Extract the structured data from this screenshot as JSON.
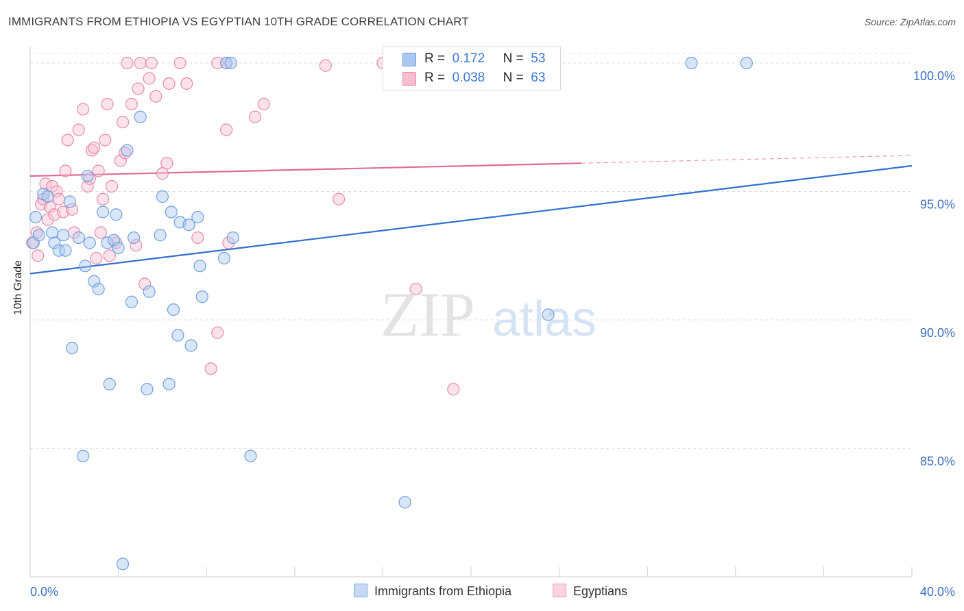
{
  "header": {
    "title": "IMMIGRANTS FROM ETHIOPIA VS EGYPTIAN 10TH GRADE CORRELATION CHART",
    "source": "Source: ZipAtlas.com"
  },
  "watermark": {
    "zip": "ZIP",
    "atlas": "atlas"
  },
  "legend_top": [
    {
      "r_label": "R =",
      "r_value": "0.172",
      "n_label": "N =",
      "n_value": "53",
      "color": "#a9c7f0",
      "border": "#6d9ee0"
    },
    {
      "r_label": "R =",
      "r_value": "0.038",
      "n_label": "N =",
      "n_value": "63",
      "color": "#f8bdd0",
      "border": "#e88aa8"
    }
  ],
  "legend_bottom": [
    {
      "label": "Immigrants from Ethiopia",
      "color": "#c4d9f5",
      "border": "#7aa6e0"
    },
    {
      "label": "Egyptians",
      "color": "#fbd3e0",
      "border": "#ea9ab5"
    }
  ],
  "colors": {
    "blue_fill": "rgba(170,200,240,0.45)",
    "blue_stroke": "#6d9ee0",
    "blue_line": "#2f6fcf",
    "pink_fill": "rgba(248,190,210,0.45)",
    "pink_stroke": "#e58aa8",
    "pink_line": "#e06b93",
    "tick_label": "#3b6fc4",
    "grid": "#dddddd"
  },
  "chart_data": {
    "type": "scatter",
    "title": "IMMIGRANTS FROM ETHIOPIA VS EGYPTIAN 10TH GRADE CORRELATION CHART",
    "xlabel": "",
    "ylabel": "10th Grade",
    "xlim": [
      0,
      40
    ],
    "ylim": [
      80.0,
      100.8
    ],
    "x_tick_labels": [
      {
        "value": 0,
        "label": "0.0%"
      },
      {
        "value": 40,
        "label": "40.0%"
      }
    ],
    "x_minor_ticks": [
      4,
      8,
      12,
      16,
      20,
      24,
      28,
      32,
      36,
      40
    ],
    "y_ticks": [
      {
        "value": 100,
        "label": "100.0%"
      },
      {
        "value": 95,
        "label": "95.0%"
      },
      {
        "value": 90,
        "label": "90.0%"
      },
      {
        "value": 85,
        "label": "85.0%"
      }
    ],
    "grid": true,
    "legend": "top-center",
    "series": [
      {
        "name": "Immigrants from Ethiopia",
        "points": [
          [
            0.15,
            93.0
          ],
          [
            0.25,
            94.0
          ],
          [
            0.4,
            93.3
          ],
          [
            0.6,
            94.9
          ],
          [
            0.8,
            94.8
          ],
          [
            1.0,
            93.4
          ],
          [
            1.1,
            93.0
          ],
          [
            1.3,
            92.7
          ],
          [
            1.5,
            93.3
          ],
          [
            1.6,
            92.7
          ],
          [
            1.8,
            94.6
          ],
          [
            2.2,
            93.2
          ],
          [
            2.4,
            84.7
          ],
          [
            2.5,
            92.1
          ],
          [
            2.6,
            95.6
          ],
          [
            2.7,
            93.0
          ],
          [
            2.9,
            91.5
          ],
          [
            3.1,
            91.2
          ],
          [
            3.3,
            94.2
          ],
          [
            3.5,
            93.0
          ],
          [
            3.6,
            87.5
          ],
          [
            3.8,
            93.1
          ],
          [
            3.9,
            94.1
          ],
          [
            4.0,
            92.8
          ],
          [
            4.2,
            80.5
          ],
          [
            4.4,
            96.6
          ],
          [
            4.6,
            90.7
          ],
          [
            4.7,
            93.2
          ],
          [
            5.0,
            97.9
          ],
          [
            5.3,
            87.3
          ],
          [
            5.4,
            91.1
          ],
          [
            5.9,
            93.3
          ],
          [
            6.0,
            94.8
          ],
          [
            6.3,
            87.5
          ],
          [
            6.4,
            94.2
          ],
          [
            6.5,
            90.4
          ],
          [
            6.7,
            89.4
          ],
          [
            6.8,
            93.8
          ],
          [
            7.2,
            93.7
          ],
          [
            7.3,
            89.0
          ],
          [
            7.6,
            94.0
          ],
          [
            7.7,
            92.1
          ],
          [
            7.8,
            90.9
          ],
          [
            8.8,
            92.4
          ],
          [
            8.9,
            100.0
          ],
          [
            9.1,
            100.0
          ],
          [
            9.2,
            93.2
          ],
          [
            10.0,
            84.7
          ],
          [
            17.0,
            82.9
          ],
          [
            23.5,
            90.2
          ],
          [
            30.0,
            100.0
          ],
          [
            32.5,
            100.0
          ],
          [
            1.9,
            88.9
          ]
        ]
      },
      {
        "name": "Egyptians",
        "points": [
          [
            0.1,
            93.0
          ],
          [
            0.3,
            93.4
          ],
          [
            0.35,
            92.5
          ],
          [
            0.5,
            94.5
          ],
          [
            0.6,
            94.7
          ],
          [
            0.7,
            95.3
          ],
          [
            0.8,
            93.9
          ],
          [
            0.9,
            94.4
          ],
          [
            1.0,
            95.2
          ],
          [
            1.1,
            94.1
          ],
          [
            1.2,
            95.0
          ],
          [
            1.3,
            94.7
          ],
          [
            1.5,
            94.2
          ],
          [
            1.6,
            95.8
          ],
          [
            1.7,
            97.0
          ],
          [
            1.9,
            94.3
          ],
          [
            2.0,
            93.4
          ],
          [
            2.2,
            97.4
          ],
          [
            2.4,
            98.2
          ],
          [
            2.6,
            95.2
          ],
          [
            2.7,
            95.5
          ],
          [
            2.8,
            96.6
          ],
          [
            2.9,
            96.7
          ],
          [
            3.0,
            92.4
          ],
          [
            3.1,
            95.8
          ],
          [
            3.2,
            93.4
          ],
          [
            3.3,
            94.7
          ],
          [
            3.4,
            97.0
          ],
          [
            3.5,
            98.4
          ],
          [
            3.6,
            92.5
          ],
          [
            3.7,
            95.2
          ],
          [
            3.9,
            93.0
          ],
          [
            4.1,
            96.2
          ],
          [
            4.2,
            97.7
          ],
          [
            4.3,
            96.5
          ],
          [
            4.4,
            100.0
          ],
          [
            4.6,
            98.4
          ],
          [
            4.8,
            92.9
          ],
          [
            4.9,
            99.0
          ],
          [
            5.0,
            100.0
          ],
          [
            5.2,
            91.4
          ],
          [
            5.4,
            99.4
          ],
          [
            5.5,
            100.0
          ],
          [
            5.7,
            98.7
          ],
          [
            6.0,
            95.7
          ],
          [
            6.2,
            96.1
          ],
          [
            6.3,
            99.2
          ],
          [
            6.8,
            100.0
          ],
          [
            7.1,
            99.2
          ],
          [
            7.6,
            93.2
          ],
          [
            8.5,
            89.5
          ],
          [
            8.9,
            97.4
          ],
          [
            9.0,
            93.0
          ],
          [
            10.2,
            97.9
          ],
          [
            10.6,
            98.4
          ],
          [
            13.4,
            99.9
          ],
          [
            14.0,
            94.7
          ],
          [
            16.0,
            100.0
          ],
          [
            17.5,
            91.2
          ],
          [
            19.2,
            87.3
          ],
          [
            8.5,
            100.0
          ],
          [
            8.9,
            100.0
          ],
          [
            8.2,
            88.1
          ]
        ]
      }
    ],
    "trend_lines": [
      {
        "series": "Immigrants from Ethiopia",
        "x": [
          0,
          40
        ],
        "y": [
          91.8,
          96.0
        ],
        "dashed_from": null
      },
      {
        "series": "Egyptians",
        "x": [
          0,
          40
        ],
        "y": [
          95.6,
          96.4
        ],
        "dashed_from": 25.0
      }
    ]
  }
}
